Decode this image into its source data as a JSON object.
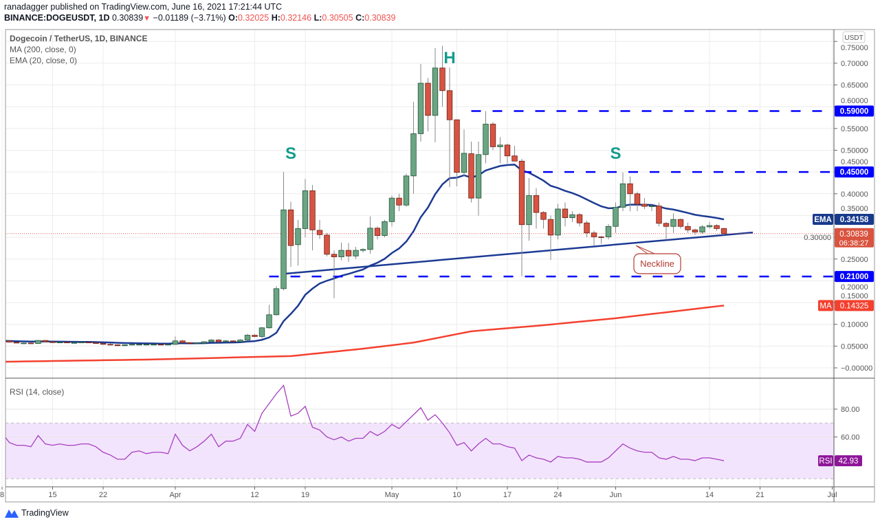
{
  "header": {
    "publisher_line": "ranadagger published on TradingView.com, June 16, 2021 17:21:44 UTC",
    "symbol": "BINANCE:DOGEUSDT, 1D",
    "last": "0.30839",
    "change": "−0.01189 (−3.71%)",
    "o_label": "O:",
    "o": "0.32025",
    "h_label": "H:",
    "h": "0.32146",
    "l_label": "L:",
    "l": "0.30505",
    "c_label": "C:",
    "c": "0.30839"
  },
  "legend": {
    "title": "Dogecoin / TetherUS, 1D, BINANCE",
    "ma": "MA (200, close, 0)",
    "ema": "EMA (20, close, 0)",
    "rsi": "RSI (14, close)"
  },
  "currency": "USDT",
  "footer": {
    "brand": "TradingView"
  },
  "colors": {
    "up": "#6ba583",
    "up_border": "#225437",
    "down": "#d75442",
    "down_border": "#6b1e15",
    "ema": "#1b3a93",
    "ma": "#f4402f",
    "level": "#0000ff",
    "rsi": "#a63fc0",
    "rsi_band": "#f3e4fd",
    "annotation": "#149c8c",
    "price_box": "#d9533f",
    "rsi_box": "#8e1599",
    "ema_box": "#173a8c",
    "neckline": "#1b3a93",
    "callout": "#b23b30"
  },
  "chart_data": {
    "type": "candlestick",
    "title": "Dogecoin / TetherUS, 1D, BINANCE",
    "start_date": "2021-03-08",
    "ylim": [
      -0.02,
      0.76
    ],
    "y_ticks": [
      "0.75000",
      "0.70000",
      "0.65000",
      "0.60000",
      "0.55000",
      "0.50000",
      "0.45000",
      "0.40000",
      "0.35000",
      "0.30000",
      "0.25000",
      "0.20000",
      "0.15000",
      "0.10000",
      "0.05000",
      "−0.00000"
    ],
    "y_tick_values": [
      0.75,
      0.7,
      0.65,
      0.6,
      0.55,
      0.5,
      0.45,
      0.4,
      0.35,
      0.3,
      0.25,
      0.2,
      0.15,
      0.1,
      0.05,
      0.0
    ],
    "x_ticks": [
      {
        "label": "8",
        "day": 0
      },
      {
        "label": "15",
        "day": 7
      },
      {
        "label": "22",
        "day": 14
      },
      {
        "label": "Apr",
        "day": 24
      },
      {
        "label": "12",
        "day": 35
      },
      {
        "label": "19",
        "day": 42
      },
      {
        "label": "May",
        "day": 54
      },
      {
        "label": "10",
        "day": 63
      },
      {
        "label": "17",
        "day": 70
      },
      {
        "label": "24",
        "day": 77
      },
      {
        "label": "Jun",
        "day": 85
      },
      {
        "label": "14",
        "day": 98
      },
      {
        "label": "21",
        "day": 105
      },
      {
        "label": "Jul",
        "day": 115
      }
    ],
    "ohlc": [
      [
        0.056,
        0.064,
        0.054,
        0.062
      ],
      [
        0.062,
        0.064,
        0.058,
        0.059
      ],
      [
        0.059,
        0.06,
        0.056,
        0.057
      ],
      [
        0.057,
        0.058,
        0.055,
        0.057
      ],
      [
        0.057,
        0.058,
        0.055,
        0.056
      ],
      [
        0.056,
        0.064,
        0.055,
        0.063
      ],
      [
        0.063,
        0.064,
        0.059,
        0.06
      ],
      [
        0.06,
        0.061,
        0.057,
        0.058
      ],
      [
        0.058,
        0.06,
        0.057,
        0.059
      ],
      [
        0.059,
        0.06,
        0.057,
        0.058
      ],
      [
        0.058,
        0.059,
        0.056,
        0.058
      ],
      [
        0.058,
        0.06,
        0.057,
        0.059
      ],
      [
        0.059,
        0.06,
        0.057,
        0.058
      ],
      [
        0.058,
        0.059,
        0.055,
        0.056
      ],
      [
        0.056,
        0.057,
        0.053,
        0.054
      ],
      [
        0.054,
        0.056,
        0.052,
        0.053
      ],
      [
        0.053,
        0.054,
        0.05,
        0.051
      ],
      [
        0.051,
        0.054,
        0.05,
        0.053
      ],
      [
        0.053,
        0.055,
        0.052,
        0.054
      ],
      [
        0.054,
        0.055,
        0.053,
        0.054
      ],
      [
        0.054,
        0.055,
        0.053,
        0.054
      ],
      [
        0.054,
        0.055,
        0.053,
        0.054
      ],
      [
        0.054,
        0.055,
        0.052,
        0.053
      ],
      [
        0.053,
        0.055,
        0.053,
        0.054
      ],
      [
        0.054,
        0.072,
        0.053,
        0.062
      ],
      [
        0.062,
        0.064,
        0.057,
        0.058
      ],
      [
        0.058,
        0.059,
        0.055,
        0.056
      ],
      [
        0.056,
        0.058,
        0.055,
        0.057
      ],
      [
        0.057,
        0.061,
        0.056,
        0.06
      ],
      [
        0.06,
        0.066,
        0.059,
        0.064
      ],
      [
        0.064,
        0.066,
        0.058,
        0.06
      ],
      [
        0.06,
        0.064,
        0.059,
        0.062
      ],
      [
        0.062,
        0.063,
        0.059,
        0.06
      ],
      [
        0.06,
        0.066,
        0.059,
        0.064
      ],
      [
        0.064,
        0.078,
        0.063,
        0.075
      ],
      [
        0.075,
        0.077,
        0.07,
        0.072
      ],
      [
        0.072,
        0.094,
        0.068,
        0.092
      ],
      [
        0.092,
        0.145,
        0.09,
        0.122
      ],
      [
        0.122,
        0.188,
        0.12,
        0.182
      ],
      [
        0.182,
        0.45,
        0.178,
        0.363
      ],
      [
        0.363,
        0.382,
        0.232,
        0.281
      ],
      [
        0.283,
        0.34,
        0.235,
        0.32
      ],
      [
        0.32,
        0.434,
        0.3,
        0.407
      ],
      [
        0.407,
        0.42,
        0.27,
        0.317
      ],
      [
        0.316,
        0.34,
        0.296,
        0.306
      ],
      [
        0.305,
        0.31,
        0.256,
        0.261
      ],
      [
        0.261,
        0.27,
        0.16,
        0.255
      ],
      [
        0.255,
        0.288,
        0.247,
        0.27
      ],
      [
        0.27,
        0.287,
        0.243,
        0.257
      ],
      [
        0.257,
        0.278,
        0.25,
        0.27
      ],
      [
        0.27,
        0.275,
        0.265,
        0.272
      ],
      [
        0.272,
        0.348,
        0.262,
        0.321
      ],
      [
        0.321,
        0.325,
        0.295,
        0.304
      ],
      [
        0.304,
        0.34,
        0.3,
        0.336
      ],
      [
        0.336,
        0.396,
        0.325,
        0.39
      ],
      [
        0.39,
        0.4,
        0.36,
        0.374
      ],
      [
        0.374,
        0.446,
        0.37,
        0.441
      ],
      [
        0.441,
        0.611,
        0.4,
        0.538
      ],
      [
        0.538,
        0.698,
        0.52,
        0.654
      ],
      [
        0.654,
        0.666,
        0.543,
        0.58
      ],
      [
        0.58,
        0.735,
        0.518,
        0.689
      ],
      [
        0.689,
        0.74,
        0.6,
        0.637
      ],
      [
        0.637,
        0.69,
        0.415,
        0.57
      ],
      [
        0.57,
        0.57,
        0.417,
        0.449
      ],
      [
        0.449,
        0.548,
        0.44,
        0.493
      ],
      [
        0.492,
        0.52,
        0.38,
        0.39
      ],
      [
        0.39,
        0.52,
        0.35,
        0.49
      ],
      [
        0.49,
        0.59,
        0.47,
        0.56
      ],
      [
        0.56,
        0.565,
        0.5,
        0.508
      ],
      [
        0.508,
        0.53,
        0.47,
        0.512
      ],
      [
        0.512,
        0.515,
        0.47,
        0.487
      ],
      [
        0.487,
        0.51,
        0.475,
        0.475
      ],
      [
        0.475,
        0.48,
        0.21,
        0.329
      ],
      [
        0.329,
        0.436,
        0.292,
        0.396
      ],
      [
        0.396,
        0.413,
        0.32,
        0.357
      ],
      [
        0.357,
        0.36,
        0.32,
        0.341
      ],
      [
        0.341,
        0.35,
        0.248,
        0.305
      ],
      [
        0.305,
        0.377,
        0.295,
        0.365
      ],
      [
        0.365,
        0.38,
        0.325,
        0.345
      ],
      [
        0.345,
        0.36,
        0.335,
        0.352
      ],
      [
        0.352,
        0.356,
        0.325,
        0.333
      ],
      [
        0.333,
        0.338,
        0.3,
        0.31
      ],
      [
        0.31,
        0.315,
        0.28,
        0.301
      ],
      [
        0.301,
        0.303,
        0.285,
        0.3
      ],
      [
        0.301,
        0.33,
        0.295,
        0.325
      ],
      [
        0.325,
        0.38,
        0.31,
        0.369
      ],
      [
        0.369,
        0.449,
        0.36,
        0.423
      ],
      [
        0.423,
        0.44,
        0.36,
        0.4
      ],
      [
        0.4,
        0.405,
        0.36,
        0.376
      ],
      [
        0.376,
        0.39,
        0.365,
        0.371
      ],
      [
        0.371,
        0.375,
        0.36,
        0.372
      ],
      [
        0.372,
        0.38,
        0.325,
        0.332
      ],
      [
        0.332,
        0.335,
        0.294,
        0.325
      ],
      [
        0.325,
        0.355,
        0.31,
        0.341
      ],
      [
        0.341,
        0.343,
        0.32,
        0.325
      ],
      [
        0.325,
        0.334,
        0.31,
        0.317
      ],
      [
        0.317,
        0.32,
        0.305,
        0.312
      ],
      [
        0.312,
        0.328,
        0.308,
        0.324
      ],
      [
        0.324,
        0.335,
        0.32,
        0.327
      ],
      [
        0.327,
        0.33,
        0.315,
        0.32
      ],
      [
        0.32025,
        0.32146,
        0.30505,
        0.30839
      ]
    ],
    "ma200": {
      "days": [
        0,
        20,
        40,
        50,
        57,
        65,
        75,
        85,
        100
      ],
      "values": [
        0.014,
        0.019,
        0.027,
        0.044,
        0.058,
        0.084,
        0.098,
        0.114,
        0.14325
      ]
    },
    "ema_period": 20,
    "rsi": {
      "ylim": [
        20,
        100
      ],
      "ticks": [
        "80.00",
        "60.00"
      ],
      "tick_values": [
        80,
        60
      ],
      "band": [
        30,
        70
      ],
      "values": [
        63,
        56,
        54,
        54,
        53,
        61,
        55,
        54,
        55,
        54,
        54,
        55,
        55,
        53,
        49,
        47,
        44,
        44,
        49,
        50,
        48,
        49,
        49,
        48,
        62,
        54,
        50,
        53,
        57,
        62,
        53,
        57,
        57,
        59,
        69,
        64,
        77,
        84,
        91,
        97,
        75,
        77,
        82,
        67,
        65,
        60,
        58,
        60,
        57,
        59,
        59,
        64,
        61,
        64,
        69,
        66,
        71,
        76,
        81,
        72,
        76,
        70,
        63,
        54,
        56,
        50,
        55,
        59,
        55,
        55,
        53,
        52,
        43,
        47,
        45,
        44,
        42,
        46,
        45,
        45,
        44,
        42,
        42,
        42,
        45,
        50,
        55,
        52,
        50,
        49,
        49,
        45,
        44,
        46,
        44,
        44,
        43,
        45,
        45,
        44,
        42.93
      ]
    },
    "levels": [
      {
        "value": 0.59,
        "label": "0.59000",
        "from_day": 65
      },
      {
        "value": 0.45,
        "label": "0.45000",
        "from_day": 72
      },
      {
        "value": 0.21,
        "label": "0.21000",
        "from_day": 37
      }
    ],
    "neckline": {
      "from": {
        "day": 39,
        "value": 0.216
      },
      "to": {
        "day": 104,
        "value": 0.311
      },
      "label": "Neckline"
    },
    "annotations": [
      {
        "text": "S",
        "day": 40,
        "value": 0.48
      },
      {
        "text": "H",
        "day": 62,
        "value": 0.7
      },
      {
        "text": "S",
        "day": 85,
        "value": 0.48
      }
    ],
    "value_labels": {
      "ema_tag": "EMA",
      "ema": "0.34158",
      "ma_tag": "MA",
      "ma": "0.14325",
      "price": "0.30839",
      "countdown": "06:38:27",
      "rsi_tag": "RSI",
      "rsi": "42.93"
    }
  }
}
